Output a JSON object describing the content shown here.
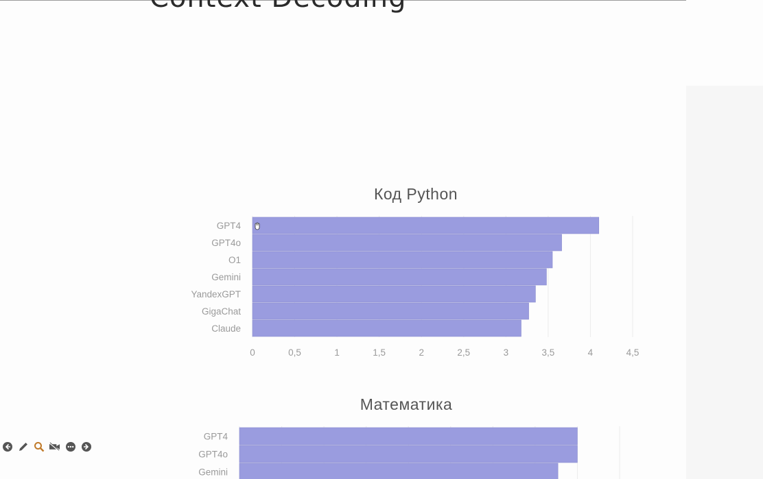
{
  "slide": {
    "title": "Context Decoding"
  },
  "toolbar": {
    "buttons": [
      {
        "icon": "arrow-left-icon",
        "label": "previous"
      },
      {
        "icon": "pencil-icon",
        "label": "pen"
      },
      {
        "icon": "zoom-icon",
        "label": "zoom"
      },
      {
        "icon": "video-off-icon",
        "label": "video"
      },
      {
        "icon": "more-icon",
        "label": "more"
      },
      {
        "icon": "arrow-right-icon",
        "label": "next"
      }
    ]
  },
  "chart_data": [
    {
      "type": "bar",
      "orientation": "horizontal",
      "title": "Код Python",
      "categories": [
        "GPT4",
        "GPT4o",
        "O1",
        "Gemini",
        "YandexGPT",
        "GigaChat",
        "Claude"
      ],
      "values": [
        4.1,
        3.66,
        3.55,
        3.48,
        3.35,
        3.27,
        3.18
      ],
      "xlim": [
        0,
        4.5
      ],
      "xticks": [
        "0",
        "0,5",
        "1",
        "1,5",
        "2",
        "2,5",
        "3",
        "3,5",
        "4",
        "4,5"
      ],
      "color": "#9a9cdf",
      "grid": true
    },
    {
      "type": "bar",
      "orientation": "horizontal",
      "title": "Математика",
      "categories": [
        "GPT4",
        "GPT4o",
        "Gemini"
      ],
      "values": [
        4.0,
        4.0,
        3.77
      ],
      "xlim": [
        0,
        4.5
      ],
      "color": "#9a9cdf",
      "grid": true
    }
  ]
}
